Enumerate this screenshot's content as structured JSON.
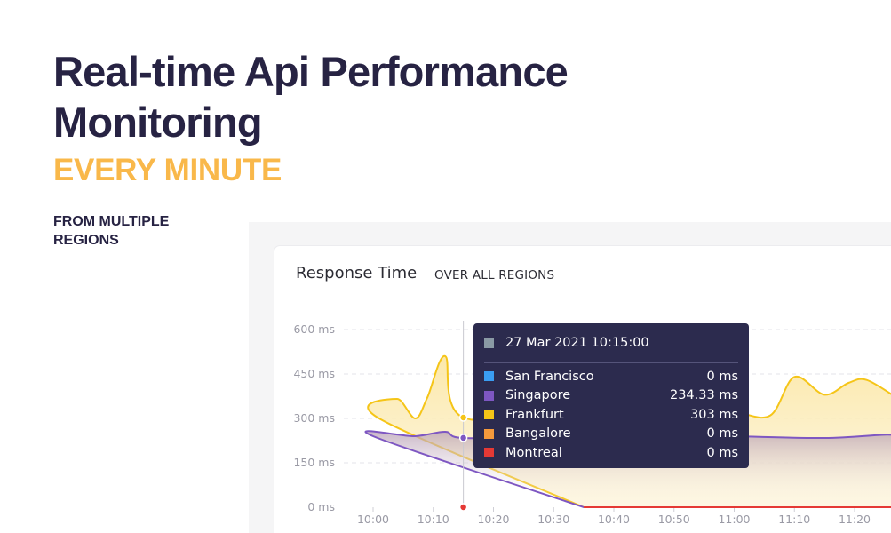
{
  "hero": {
    "title": "Real-time Api Performance Monitoring",
    "subtitle": "EVERY MINUTE",
    "note": "FROM MULTIPLE REGIONS"
  },
  "card": {
    "title": "Response Time",
    "scope": "OVER ALL REGIONS"
  },
  "colors": {
    "title": "#272343",
    "accent": "#f9b84a",
    "tooltip_bg": "#2c2b4e"
  },
  "tooltip": {
    "time": "27 Mar 2021 10:15:00",
    "time_swatch": "#8a9aa5",
    "rows": [
      {
        "name": "San Francisco",
        "value": "0 ms",
        "color": "#3a9df2"
      },
      {
        "name": "Singapore",
        "value": "234.33 ms",
        "color": "#7e57c2"
      },
      {
        "name": "Frankfurt",
        "value": "303 ms",
        "color": "#f5c518"
      },
      {
        "name": "Bangalore",
        "value": "0 ms",
        "color": "#f59a3c"
      },
      {
        "name": "Montreal",
        "value": "0 ms",
        "color": "#e53935"
      }
    ]
  },
  "chart_data": {
    "type": "area",
    "y_ticks": [
      "600 ms",
      "450 ms",
      "300 ms",
      "150 ms",
      "0 ms"
    ],
    "x_ticks": [
      "10:00",
      "10:10",
      "10:20",
      "10:30",
      "10:40",
      "10:50",
      "11:00",
      "11:10",
      "11:20"
    ],
    "ylim": [
      0,
      600
    ],
    "grid": true,
    "hover_time": "10:15",
    "series": [
      {
        "name": "Frankfurt",
        "color": "#f5c518",
        "points": [
          [
            9.95,
            0
          ],
          [
            10.01,
            300
          ],
          [
            10.04,
            366
          ],
          [
            10.07,
            300
          ],
          [
            10.09,
            370
          ],
          [
            10.12,
            510
          ],
          [
            10.15,
            303
          ],
          [
            10.35,
            320
          ],
          [
            10.5,
            330
          ],
          [
            11.0,
            320
          ],
          [
            11.06,
            310
          ],
          [
            11.1,
            440
          ],
          [
            11.15,
            380
          ],
          [
            11.19,
            420
          ],
          [
            11.22,
            430
          ],
          [
            11.27,
            370
          ]
        ]
      },
      {
        "name": "Singapore",
        "color": "#7e57c2",
        "points": [
          [
            9.95,
            0
          ],
          [
            10.0,
            240
          ],
          [
            10.07,
            240
          ],
          [
            10.12,
            255
          ],
          [
            10.15,
            234
          ],
          [
            10.3,
            240
          ],
          [
            10.4,
            255
          ],
          [
            10.6,
            240
          ],
          [
            11.0,
            240
          ],
          [
            11.15,
            234
          ],
          [
            11.25,
            245
          ],
          [
            11.27,
            240
          ]
        ]
      },
      {
        "name": "San Francisco",
        "color": "#3a9df2",
        "points": [
          [
            9.95,
            0
          ],
          [
            11.27,
            0
          ]
        ]
      },
      {
        "name": "Bangalore",
        "color": "#f59a3c",
        "points": [
          [
            9.95,
            0
          ],
          [
            11.27,
            0
          ]
        ]
      },
      {
        "name": "Montreal",
        "color": "#e53935",
        "points": [
          [
            9.95,
            0
          ],
          [
            11.27,
            0
          ]
        ]
      }
    ]
  }
}
